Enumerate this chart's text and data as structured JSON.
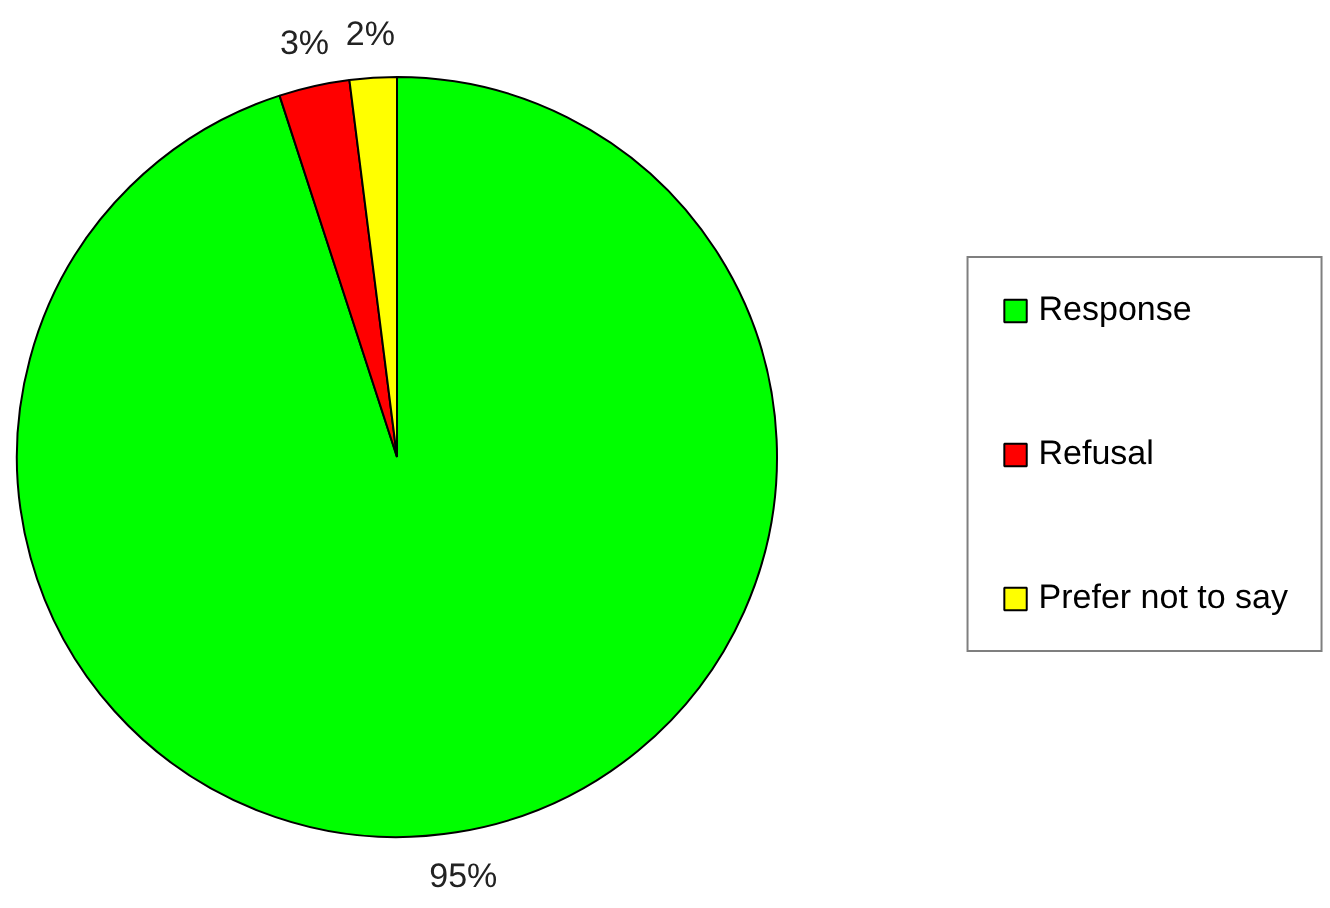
{
  "chart_data": {
    "type": "pie",
    "categories": [
      "Response",
      "Refusal",
      "Prefer not to say"
    ],
    "values": [
      95,
      3,
      2
    ],
    "colors": [
      "#00ff00",
      "#ff0000",
      "#ffff00"
    ],
    "value_labels": [
      "95%",
      "3%",
      "2%"
    ],
    "legend": "right"
  }
}
